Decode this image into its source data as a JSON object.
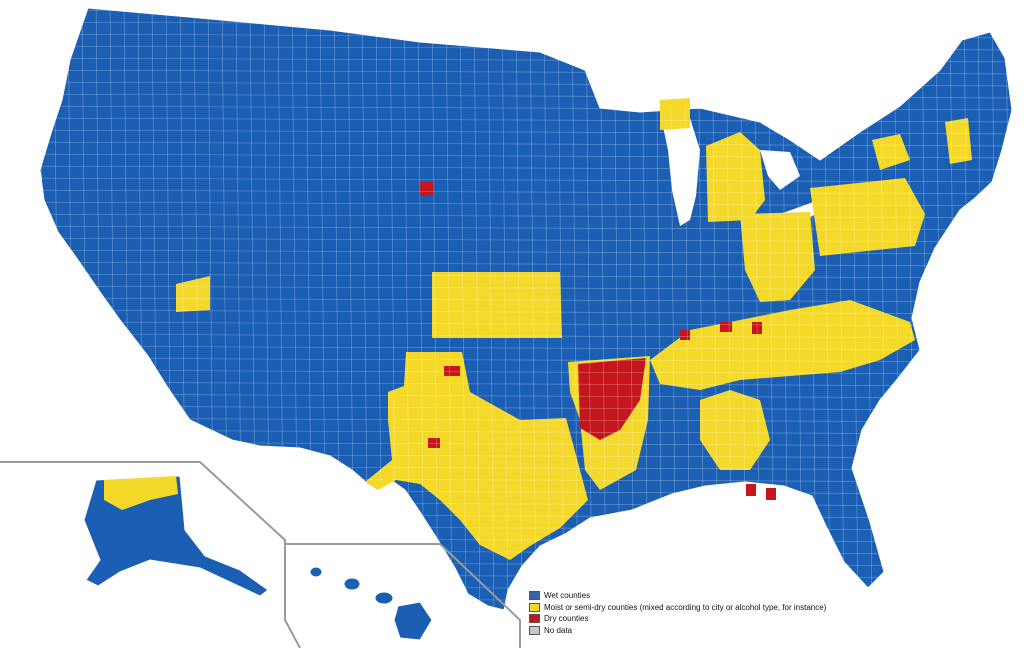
{
  "map": {
    "colors": {
      "wet": "#1a5fb4",
      "moist": "#f5d92a",
      "dry": "#c4161c",
      "no_data": "#bdbdbd",
      "border": "#ffffff",
      "inset_line": "#9a9a9a"
    }
  },
  "legend": {
    "items": [
      {
        "label": "Wet counties",
        "color": "#3b62b0"
      },
      {
        "label": "Moist or semi-dry counties (mixed according to city or alcohol type, for instance)",
        "color": "#f5d92a"
      },
      {
        "label": "Dry counties",
        "color": "#c4161c"
      },
      {
        "label": "No data",
        "color": "#c7c7c7"
      }
    ]
  }
}
